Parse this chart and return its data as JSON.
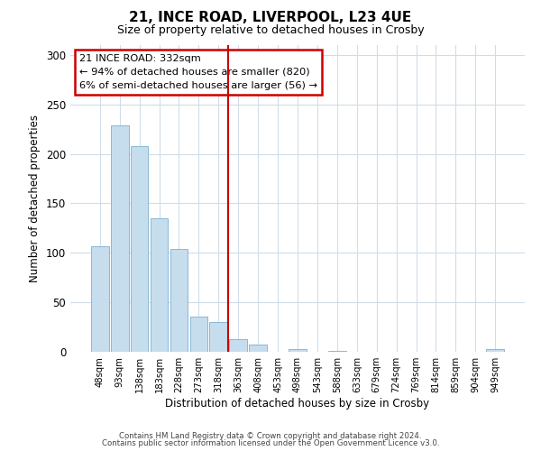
{
  "title1": "21, INCE ROAD, LIVERPOOL, L23 4UE",
  "title2": "Size of property relative to detached houses in Crosby",
  "xlabel": "Distribution of detached houses by size in Crosby",
  "ylabel": "Number of detached properties",
  "bar_labels": [
    "48sqm",
    "93sqm",
    "138sqm",
    "183sqm",
    "228sqm",
    "273sqm",
    "318sqm",
    "363sqm",
    "408sqm",
    "453sqm",
    "498sqm",
    "543sqm",
    "588sqm",
    "633sqm",
    "679sqm",
    "724sqm",
    "769sqm",
    "814sqm",
    "859sqm",
    "904sqm",
    "949sqm"
  ],
  "bar_values": [
    107,
    229,
    208,
    135,
    104,
    36,
    30,
    13,
    7,
    0,
    3,
    0,
    1,
    0,
    0,
    0,
    0,
    0,
    0,
    0,
    3
  ],
  "bar_color": "#c6dded",
  "bar_edge_color": "#8ab8d4",
  "vline_color": "#cc0000",
  "annotation_title": "21 INCE ROAD: 332sqm",
  "annotation_line1": "← 94% of detached houses are smaller (820)",
  "annotation_line2": "6% of semi-detached houses are larger (56) →",
  "annotation_box_edge": "#cc0000",
  "ylim": [
    0,
    310
  ],
  "yticks": [
    0,
    50,
    100,
    150,
    200,
    250,
    300
  ],
  "footer1": "Contains HM Land Registry data © Crown copyright and database right 2024.",
  "footer2": "Contains public sector information licensed under the Open Government Licence v3.0.",
  "grid_color": "#d0dde8"
}
